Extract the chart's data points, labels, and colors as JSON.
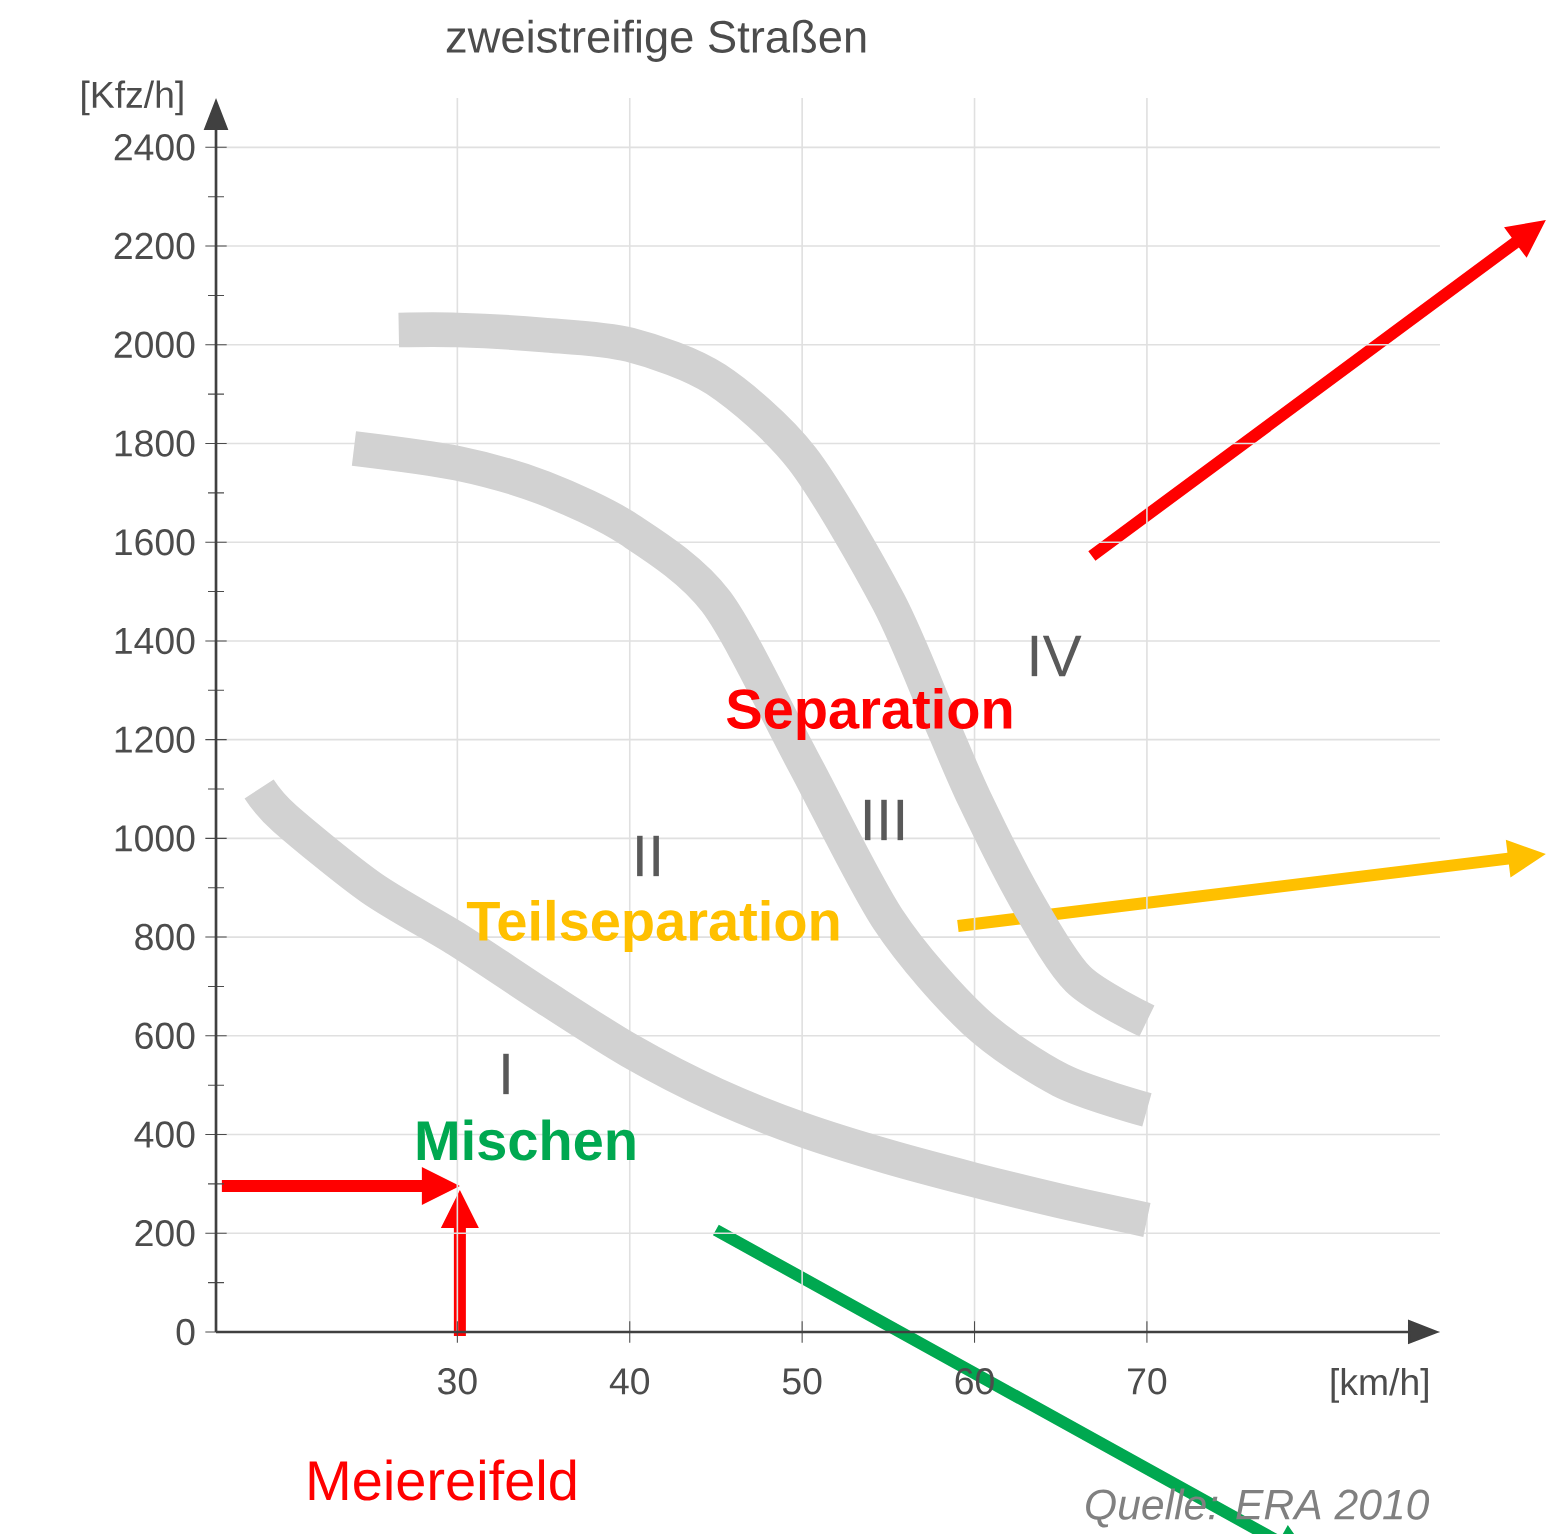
{
  "chart_data": {
    "type": "line",
    "title": "zweistreifige Straßen",
    "xlabel": "[km/h]",
    "ylabel": "[Kfz/h]",
    "xlim": [
      16,
      87
    ],
    "ylim": [
      0,
      2500
    ],
    "xticks": [
      30,
      40,
      50,
      60,
      70
    ],
    "yticks": [
      0,
      200,
      400,
      600,
      800,
      1000,
      1200,
      1400,
      1600,
      1800,
      2000,
      2200,
      2400
    ],
    "grid": true,
    "marker": "none",
    "line_style": "solid",
    "series": [
      {
        "color": "#d2d2d2",
        "x": [
          18.5,
          20,
          25,
          30,
          35,
          40,
          45,
          50,
          55,
          60,
          65,
          70
        ],
        "values": [
          1100,
          1040,
          900,
          795,
          680,
          570,
          480,
          410,
          355,
          308,
          265,
          227
        ]
      },
      {
        "color": "#d2d2d2",
        "x": [
          24,
          30,
          35,
          40,
          45,
          50,
          55,
          60,
          65,
          70
        ],
        "values": [
          1790,
          1760,
          1710,
          1625,
          1480,
          1160,
          835,
          630,
          510,
          450
        ]
      },
      {
        "color": "#d2d2d2",
        "x": [
          26.6,
          30,
          35,
          40,
          45,
          50,
          55,
          58,
          60,
          63,
          66,
          70
        ],
        "values": [
          2030,
          2030,
          2020,
          2000,
          1930,
          1770,
          1480,
          1240,
          1080,
          875,
          715,
          630
        ]
      }
    ],
    "annotations": [
      "I",
      "II",
      "III",
      "IV",
      "Separation",
      "Teilseparation",
      "Mischen",
      "Meiereifeld",
      "Quelle: ERA 2010"
    ]
  }
}
